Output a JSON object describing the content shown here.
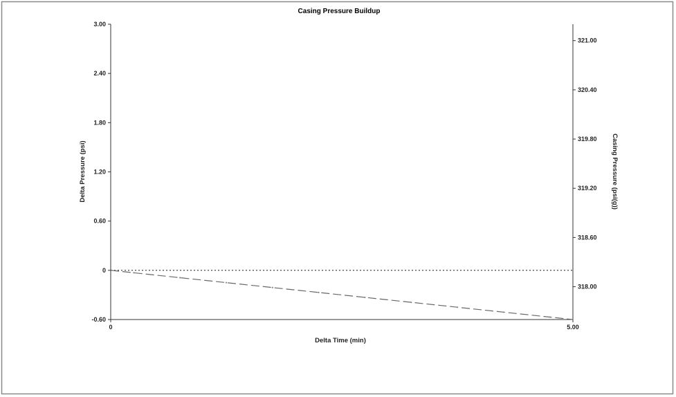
{
  "chart_data": {
    "type": "line",
    "title": "Casing Pressure Buildup",
    "xlabel": "Delta Time (min)",
    "ylabel_left": "Delta Pressure (psi)",
    "ylabel_right": "Casing Pressure (psi(g))",
    "xlim": [
      0,
      5.0
    ],
    "ylim_left": [
      -0.6,
      3.0
    ],
    "ylim_right": [
      317.6,
      321.2
    ],
    "x_ticks": [
      {
        "value": 0,
        "label": "0"
      },
      {
        "value": 5.0,
        "label": "5.00"
      }
    ],
    "y_left_ticks": [
      {
        "value": 3.0,
        "label": "3.00"
      },
      {
        "value": 2.4,
        "label": "2.40"
      },
      {
        "value": 1.8,
        "label": "1.80"
      },
      {
        "value": 1.2,
        "label": "1.20"
      },
      {
        "value": 0.6,
        "label": "0.60"
      },
      {
        "value": 0,
        "label": "0"
      },
      {
        "value": -0.6,
        "label": "-0.60"
      }
    ],
    "y_right_ticks": [
      {
        "value": 321.0,
        "label": "321.00"
      },
      {
        "value": 320.4,
        "label": "320.40"
      },
      {
        "value": 319.8,
        "label": "319.80"
      },
      {
        "value": 319.2,
        "label": "319.20"
      },
      {
        "value": 318.6,
        "label": "318.60"
      },
      {
        "value": 318.0,
        "label": "318.00"
      }
    ],
    "series": [
      {
        "axis": "left",
        "style": "dotted",
        "color": "#555555",
        "x": [
          0,
          5.0
        ],
        "y": [
          0,
          0
        ]
      },
      {
        "axis": "left",
        "style": "dashed",
        "color": "#666666",
        "x": [
          0,
          5.0
        ],
        "y": [
          0,
          -0.6
        ]
      },
      {
        "axis": "left",
        "style": "points",
        "color": "#888888",
        "x": [
          0.25,
          0.75,
          1.25,
          1.75,
          2.25,
          2.75,
          3.25,
          3.75,
          4.25,
          4.75
        ],
        "y": [
          -0.03,
          -0.09,
          -0.15,
          -0.21,
          -0.27,
          -0.33,
          -0.39,
          -0.45,
          -0.51,
          -0.57
        ]
      }
    ],
    "grid": false
  }
}
